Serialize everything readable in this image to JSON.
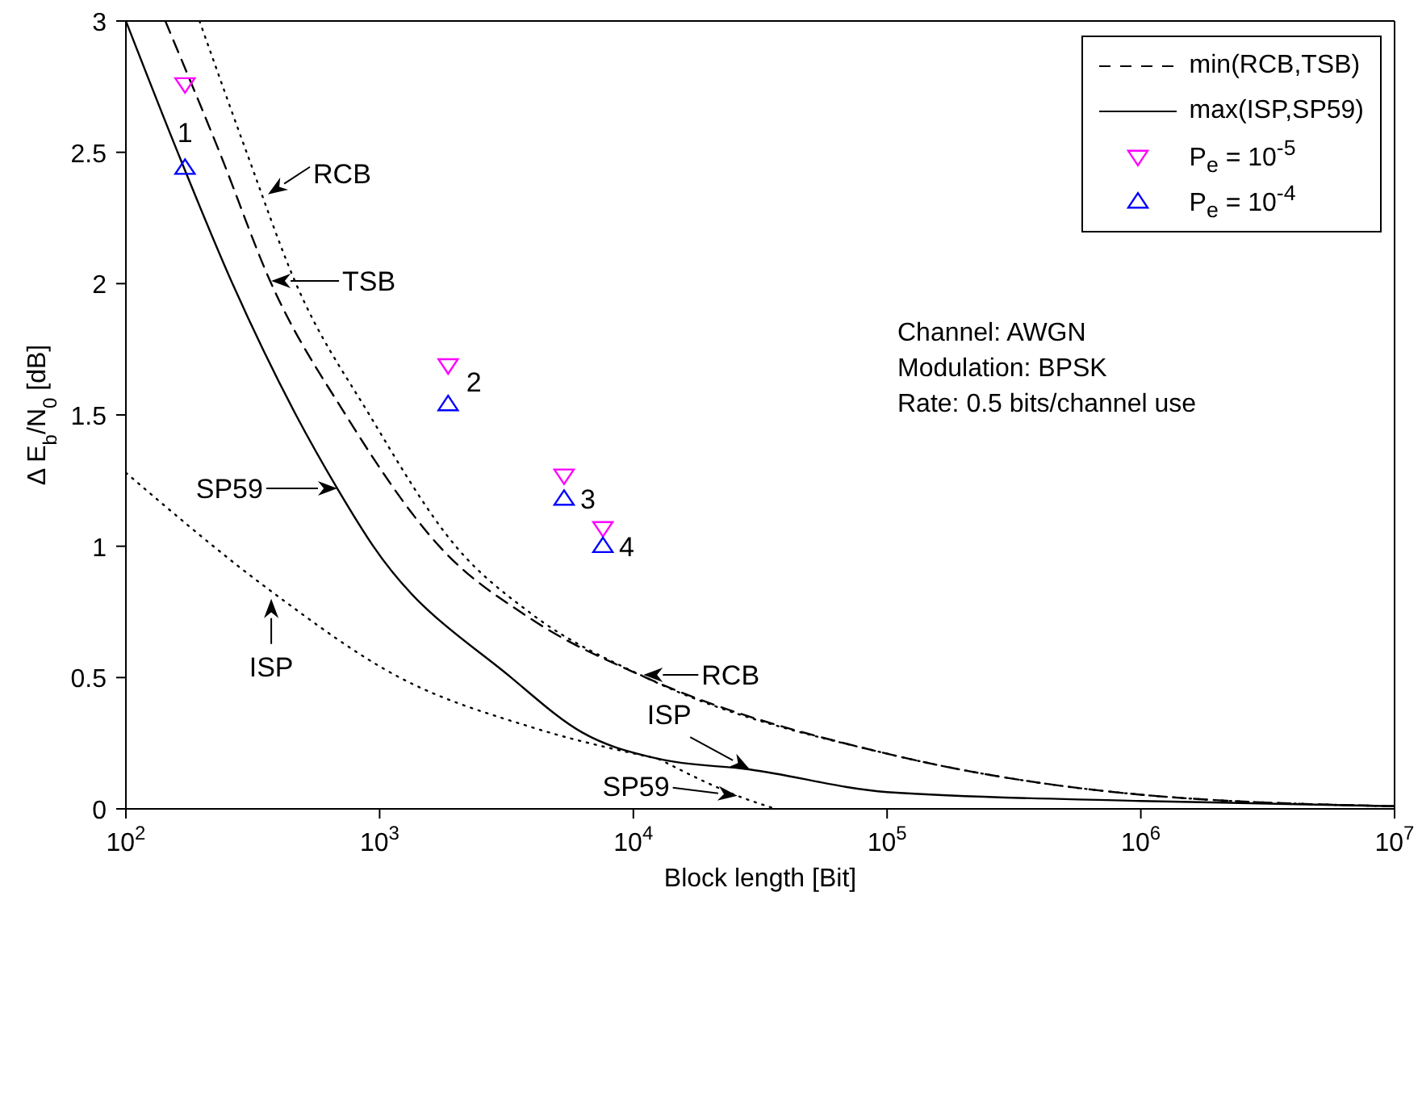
{
  "chart_data": {
    "type": "line",
    "xlabel": "Block length [Bit]",
    "ylabel": "Δ E$_{b}$/N$_{0}$ [dB]",
    "log": "x",
    "xlim": [
      100,
      10000000
    ],
    "xticks": [
      {
        "value": 100,
        "label": "10$^{2}$"
      },
      {
        "value": 1000,
        "label": "10$^{3}$"
      },
      {
        "value": 10000,
        "label": "10$^{4}$"
      },
      {
        "value": 100000,
        "label": "10$^{5}$"
      },
      {
        "value": 1000000,
        "label": "10$^{6}$"
      },
      {
        "value": 10000000,
        "label": "10$^{7}$"
      }
    ],
    "ylim": [
      0,
      3
    ],
    "yticks": [
      0,
      0.5,
      1,
      1.5,
      2,
      2.5,
      3
    ],
    "grid": false,
    "legend": "top right",
    "marker": "none",
    "series": [
      {
        "name": "min(RCB,TSB)",
        "color": "#000000",
        "line_style": "dashed",
        "x": [
          143,
          234,
          374,
          735,
          1718,
          4000,
          11200,
          100000,
          1000000,
          10000000
        ],
        "values": [
          3.0,
          2.5,
          2.0,
          1.5,
          1.0,
          0.72,
          0.5,
          0.21,
          0.054,
          0.01
        ]
      },
      {
        "name": "max(ISP,SP59)",
        "color": "#000000",
        "line_style": "solid",
        "x": [
          100,
          160,
          263,
          468,
          681,
          944,
          3300,
          6310,
          12600,
          28800,
          100000,
          1000000,
          10000000
        ],
        "values": [
          3.0,
          2.5,
          2.0,
          1.5,
          1.22,
          1.0,
          0.5,
          0.29,
          0.19,
          0.15,
          0.064,
          0.03,
          0.01
        ]
      },
      {
        "color": "#000000",
        "line_style": "dotted",
        "x": [
          195,
          299,
          468,
          912,
          1995,
          4000,
          11200,
          100000,
          1000000,
          10000000
        ],
        "values": [
          3.0,
          2.5,
          2.0,
          1.5,
          1.0,
          0.74,
          0.5,
          0.21,
          0.054,
          0.01
        ]
      },
      {
        "color": "#000000",
        "line_style": "dotted",
        "x": [
          100,
          372,
          1200,
          4000,
          12600
        ],
        "values": [
          1.28,
          0.83,
          0.5,
          0.31,
          0.19
        ]
      },
      {
        "color": "#000000",
        "line_style": "dotted",
        "x": [
          12600,
          25700,
          36300
        ],
        "values": [
          0.19,
          0.05,
          0
        ]
      },
      {
        "name": "P$_{e}$ = 10$^{-5}$",
        "type": "scatter",
        "marker": "triangle-down",
        "color": "#ff00ff",
        "x": [
          171,
          1862,
          5333,
          7586
        ],
        "values": [
          2.76,
          1.69,
          1.27,
          1.07
        ]
      },
      {
        "name": "P$_{e}$ = 10$^{-4}$",
        "type": "scatter",
        "marker": "triangle",
        "color": "#0000ff",
        "x": [
          171,
          1862,
          5333,
          7586
        ],
        "values": [
          2.44,
          1.54,
          1.18,
          1.0
        ]
      }
    ],
    "annotations": [
      {
        "text": "RCB",
        "x": 363,
        "y": 2.34
      },
      {
        "text": "TSB",
        "x": 374,
        "y": 2.01
      },
      {
        "text": "SP59",
        "x": 681,
        "y": 1.22
      },
      {
        "text": "ISP",
        "x": 374,
        "y": 0.8
      },
      {
        "text": "RCB",
        "x": 10960,
        "y": 0.51
      },
      {
        "text": "ISP",
        "x": 28800,
        "y": 0.15
      },
      {
        "text": "SP59",
        "x": 25700,
        "y": 0.05
      },
      {
        "text": "1",
        "x": 171,
        "y": 2.44
      },
      {
        "text": "2",
        "x": 1862,
        "y": 1.54
      },
      {
        "text": "3",
        "x": 5333,
        "y": 1.18
      },
      {
        "text": "4",
        "x": 7586,
        "y": 1.0
      },
      "Channel: AWGN",
      "Modulation: BPSK",
      "Rate: 0.5 bits/channel use"
    ]
  }
}
